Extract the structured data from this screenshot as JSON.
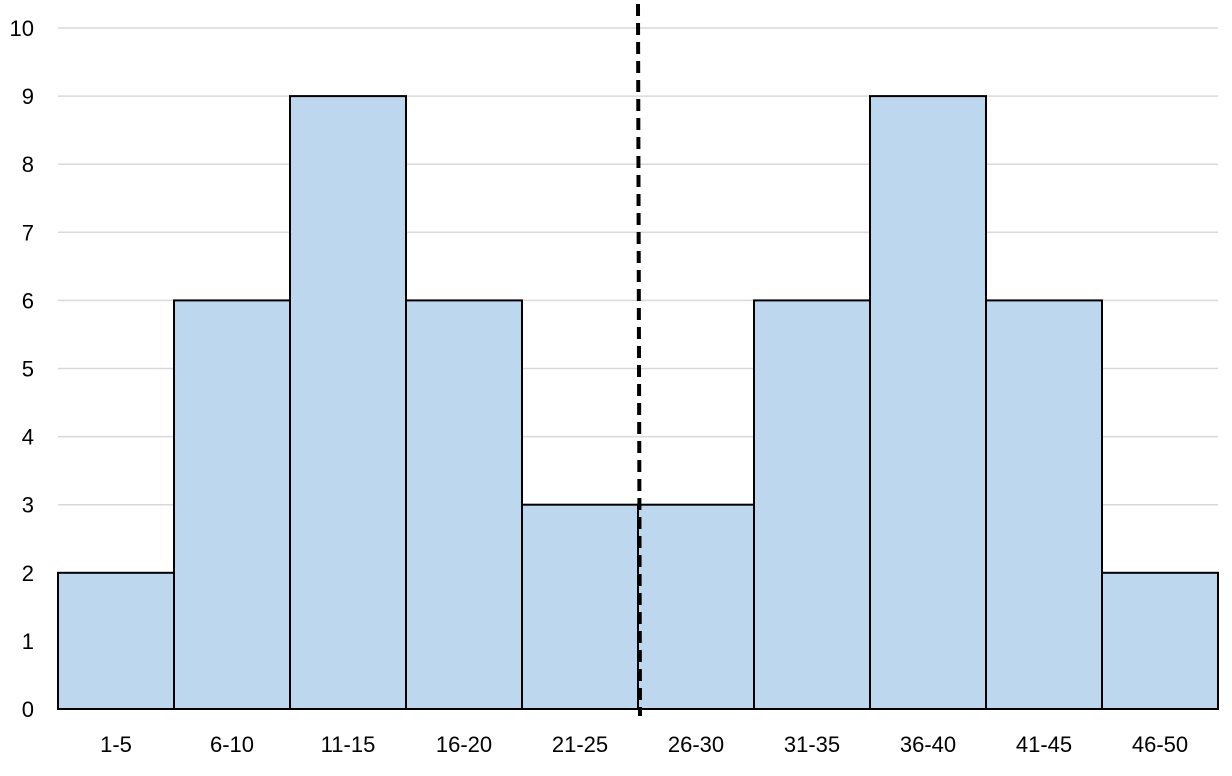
{
  "chart_data": {
    "type": "bar",
    "title": "",
    "xlabel": "",
    "ylabel": "",
    "categories": [
      "1-5",
      "6-10",
      "11-15",
      "16-20",
      "21-25",
      "26-30",
      "31-35",
      "36-40",
      "41-45",
      "46-50"
    ],
    "values": [
      2,
      6,
      9,
      6,
      3,
      3,
      6,
      9,
      6,
      2
    ],
    "ylim": [
      0,
      10
    ],
    "yticks": [
      "0",
      "1",
      "2",
      "3",
      "4",
      "5",
      "6",
      "7",
      "8",
      "9",
      "10"
    ],
    "grid": true,
    "legend": "none",
    "bar_color": "#bdd7ee",
    "bar_edge_color": "#000000",
    "reference_line": {
      "style": "dashed",
      "x": 25.5,
      "color": "#000000"
    }
  }
}
